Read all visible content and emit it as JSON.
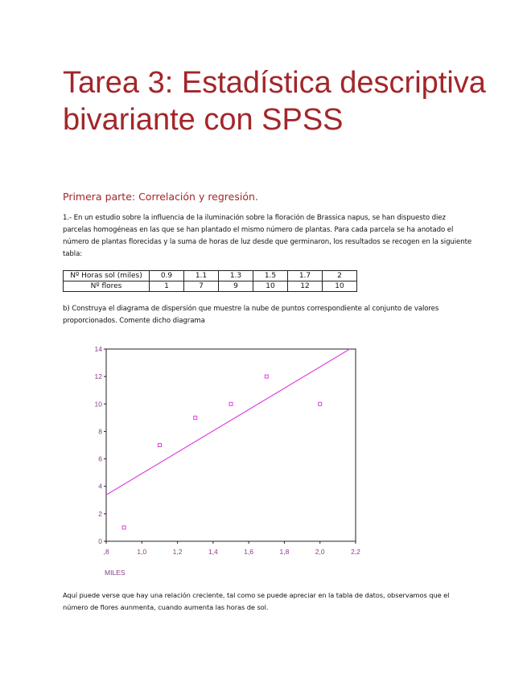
{
  "title": "Tarea 3: Estadística descriptiva bivariante con SPSS",
  "subtitle": "Primera parte: Correlación y regresión.",
  "paragraph1": "1.- En un estudio sobre la influencia de la iluminación sobre la floración de Brassica napus, se han dispuesto diez parcelas homogéneas en las que se han plantado el mismo número de plantas. Para cada parcela se ha anotado el número de plantas florecidas y la suma de horas de luz desde que germinaron, los resultados se recogen en la siguiente tabla:",
  "table": {
    "rows": [
      {
        "header": "Nº Horas sol (miles)",
        "values": [
          "0.9",
          "1.1",
          "1.3",
          "1.5",
          "1.7",
          "2"
        ]
      },
      {
        "header": "Nº flores",
        "values": [
          "1",
          "7",
          "9",
          "10",
          "12",
          "10"
        ]
      }
    ]
  },
  "paragraph2": "b) Construya el diagrama de dispersión que muestre la nube de puntos correspondiente al conjunto de valores proporcionados. Comente dicho diagrama",
  "paragraph3": "Aquí puede verse que hay una relación creciente, tal como se puede apreciar en la tabla de datos, observamos que el número de flores aunmenta, cuando aumenta las horas de sol.",
  "chart_data": {
    "type": "scatter",
    "xlabel": "MILES",
    "ylabel": "",
    "xlim": [
      0.8,
      2.2
    ],
    "ylim": [
      0,
      14
    ],
    "xticks": [
      ",8",
      "1,0",
      "1,2",
      "1,4",
      "1,6",
      "1,8",
      "2,0",
      "2,2"
    ],
    "yticks": [
      "0",
      "2",
      "4",
      "6",
      "8",
      "10",
      "12",
      "14"
    ],
    "x": [
      0.9,
      1.1,
      1.3,
      1.5,
      1.7,
      2.0
    ],
    "y": [
      1,
      7,
      9,
      10,
      12,
      10
    ],
    "fit_line": {
      "intercept": -2.845,
      "slope": 7.773
    },
    "grid": false,
    "marker": "open-square",
    "color": "#e040e0"
  }
}
